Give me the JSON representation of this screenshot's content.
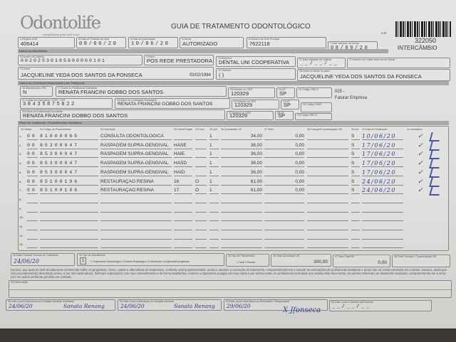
{
  "header": {
    "logo": "Odontolife",
    "logo_tagline": "tranquilidade para você sorrir",
    "title": "GUIA DE TRATAMENTO ODONTOLÓGICO",
    "guide_number_label": "2-Nº",
    "guide_number": "322050",
    "exchange": "INTERCÂMBIO"
  },
  "guide": {
    "ans_label": "1-Registro ANS",
    "ans": "406414",
    "issue_date_label": "3-Data de Emissão da Guia",
    "issue_date": "08/06/20",
    "auth_date_label": "4-Data de Autorização",
    "auth_date": "10/06/20",
    "password_label": "5-Senha",
    "password": "AUTORIZADO",
    "main_guide_label": "6-Número da Guia Principal",
    "main_guide": "7622118",
    "password_validity_label": "7-Data Validade da Senha",
    "password_validity": "08/09/20"
  },
  "beneficiary": {
    "section": "Dados do Beneficiário",
    "card_label": "8-Número da Carteira",
    "card": "00202530185600000101",
    "plan_label": "9-Plano",
    "plan": "POS REDE PRESTADORA",
    "company_label": "10-Empresa",
    "company": "DENTAL UNI COOPERATIVA",
    "card_validity_label": "11-Data Validade da Carteira",
    "card_validity": "__/__/__",
    "cns_label": "12-Número do Cartão Nacional de Saúde",
    "cns": "",
    "name_label": "13-Nome",
    "name": "JACQUELINE YEDA DOS SANTOS DA FONSECA",
    "birth_date": "02/02/1984",
    "phone_label": "14-Telefone",
    "phone": "(  )",
    "holder_label": "15-Nome do titular do plano",
    "holder": "JACQUELINE YEDA DOS SANTOS DA FONSECA"
  },
  "provider": {
    "section": "Dados do Contratado Responsável pelo Tratamento",
    "rn_label": "16-Atendimento a RN",
    "rn": "N",
    "requester_label": "17-Nome do Profissional Solicitante",
    "requester": "RENATA FRANCINI GOBBO DOS SANTOS",
    "cro1_label": "18-Número no CRO",
    "cro1": "120329",
    "uf1_label": "19-UF",
    "uf1": "SP",
    "cbo1_label": "20-Código CBO S",
    "cbo1": "",
    "billing": "025 -",
    "billing_text": "Faturar Empresa",
    "code_label": "21-Código na Operadora / CNPJ / CPF",
    "code": "38435875822",
    "contractor_label": "22-Nome do Contratado Executante",
    "contractor": "RENATA FRANCINI GOBBO DOS SANTOS",
    "cro2_label": "23-Número no CRO",
    "cro2": "120329",
    "uf2_label": "24-UF",
    "uf2": "SP",
    "cnes_label": "25-Código CNES",
    "cnes": "",
    "executor_label": "26-Nome do Profissional Executante",
    "executor": "RENATA FRANCINI GOBBO DOS SANTOS",
    "cro3_label": "27-Número no CRO",
    "cro3": "120329",
    "uf3_label": "28-UF",
    "uf3": "SP",
    "cbo3_label": "29-Código CBO S",
    "cbo3": ""
  },
  "procedures": {
    "section": "Plano de Tratamento / Procedimentos Solicitados",
    "columns": [
      "30-Tabela",
      "31-Código do Procedimento",
      "32-Descrição",
      "33-Dente/Região",
      "34-Face",
      "35-Qtd",
      "36-Quantidade US",
      "37-Valor",
      "38-Franquia/Coparticipação R$",
      "39-Aut",
      "40-Data de Realização",
      "41-Assinatura"
    ],
    "rows": [
      {
        "table": "00",
        "code": "81000065",
        "description": "CONSULTA ODONTOLOGICA",
        "tooth": "",
        "face": "",
        "qty": "1",
        "us": "34,00",
        "value": "0,00",
        "aut": "S",
        "date": "10/06/20",
        "check": "✓"
      },
      {
        "table": "00",
        "code": "85300047",
        "description": "RASPAGEM SUPRA-GENGIVAL",
        "tooth": "HASE",
        "face": "",
        "qty": "1",
        "us": "36,00",
        "value": "0,00",
        "aut": "S",
        "date": "17/06/20",
        "check": "✓"
      },
      {
        "table": "00",
        "code": "85300047",
        "description": "RASPAGEM SUPRA-GENGIVAL",
        "tooth": "HAIE",
        "face": "",
        "qty": "1",
        "us": "36,00",
        "value": "0,00",
        "aut": "S",
        "date": "17/06/20",
        "check": "✓"
      },
      {
        "table": "00",
        "code": "85300047",
        "description": "RASPAGEM SUPRA-GENGIVAL",
        "tooth": "HASD",
        "face": "",
        "qty": "1",
        "us": "36,00",
        "value": "0,00",
        "aut": "S",
        "date": "17/06/20",
        "check": "✓"
      },
      {
        "table": "00",
        "code": "85300047",
        "description": "RASPAGEM SUPRA-GENGIVAL",
        "tooth": "HAID",
        "face": "",
        "qty": "1",
        "us": "36,00",
        "value": "0,00",
        "aut": "S",
        "date": "17/06/20",
        "check": "✓"
      },
      {
        "table": "00",
        "code": "85100196",
        "description": "RESTAURAÇÃO RESINA",
        "tooth": "16",
        "face": "O",
        "qty": "1",
        "us": "61,00",
        "value": "0,00",
        "aut": "S",
        "date": "24/06/20",
        "check": "✓"
      },
      {
        "table": "00",
        "code": "85100196",
        "description": "RESTAURAÇÃO RESINA",
        "tooth": "17",
        "face": "O",
        "qty": "1",
        "us": "61,00",
        "value": "0,00",
        "aut": "S",
        "date": "24/06/20",
        "check": "✓"
      }
    ]
  },
  "totals": {
    "end_date_label": "43-Data Provável Término do Tratamento",
    "end_date": "24/06/20",
    "service_type_label": "44-Tipo de Atendimento",
    "service_type": "1",
    "service_type_options": "1-Tratamento Odontológico  2-Exame Radiológico  3-Ortodontia  4-Urgência/Emergência",
    "billing_type_label": "45-Tipo de Faturamento",
    "billing_type_options": "1-Total  2-Parcial",
    "total_us_label": "46-Total Quantidade US",
    "total_us": "300,00",
    "total_value_label": "47-Valor Total R$",
    "total_value": "0,00",
    "total_copay_label": "48-Total Franquia / Coparticipação R$"
  },
  "declaration": "Declaro, que após ter sido devidamente esclarecido sobre os propósitos, riscos, custos e alternativas de tratamento, conforme acima apresentados, aceito e autorizo a execução do tratamento, comprometendo-me a cumprir as orientações do profissional assistente e arcar com os custos previstos em contrato. Declaro, ainda que o(s) procedimento(s) descrito(s) acima, e por mim assinado(s), foi/foram realizado(s) com meu consentimento e de forma satisfatória. Autorizo a Operadora a pagar em meu nome e por minha conta, ao profissional contratado que assina esse documento, os valores referentes ao tratamento realizado, comprometendo-me a arcar com os custos conforme previsto em contrato.",
  "observation_label": "49-Observação",
  "signatures": {
    "s50_label": "50-Data, local e Assinatura do Cirurgião-Dentista Solicitante",
    "s50_date": "24/06/20",
    "s50_sig": "Sanata Renang",
    "s51_label": "51-Data, local e Assinatura do Cirurgião-Dentista",
    "s51_date": "24/06/20",
    "s51_sig": "Sanata Renang",
    "s52_label": "52-Data, local e Assinatura do Beneficiário / Responsável",
    "s52_date": "29/06/20",
    "s52_sig": "X Jfonseca",
    "s53_label": "53-Data, local e Carimbo da Empresa",
    "s53_date": "__/__/__"
  }
}
